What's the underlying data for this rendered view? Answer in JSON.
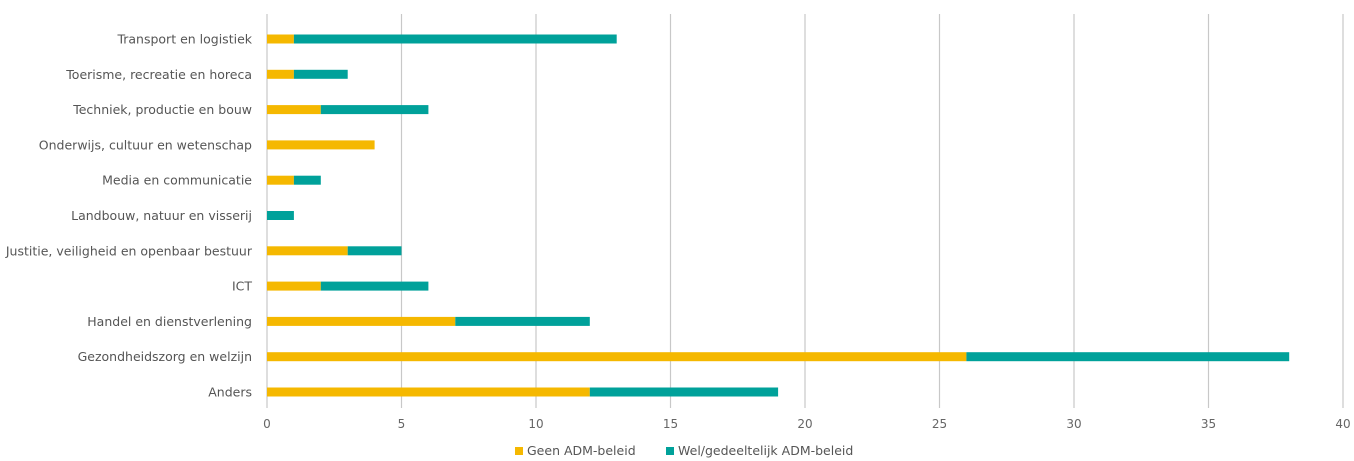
{
  "chart_data": {
    "type": "bar",
    "orientation": "horizontal",
    "stacked": true,
    "categories": [
      "Transport en logistiek",
      "Toerisme, recreatie en horeca",
      "Techniek, productie en bouw",
      "Onderwijs, cultuur en wetenschap",
      "Media en communicatie",
      "Landbouw, natuur en visserij",
      "Justitie, veiligheid en openbaar bestuur",
      "ICT",
      "Handel en dienstverlening",
      "Gezondheidszorg en welzijn",
      "Anders"
    ],
    "series": [
      {
        "name": "Geen ADM-beleid",
        "color": "#F5B800",
        "values": [
          1,
          1,
          2,
          4,
          1,
          0,
          3,
          2,
          7,
          26,
          12
        ]
      },
      {
        "name": "Wel/gedeeltelijk ADM-beleid",
        "color": "#00A19A",
        "values": [
          12,
          2,
          4,
          0,
          1,
          1,
          2,
          4,
          5,
          12,
          7
        ]
      }
    ],
    "xlim": [
      0,
      40
    ],
    "xticks": [
      "0",
      "5",
      "10",
      "15",
      "20",
      "25",
      "30",
      "35",
      "40"
    ],
    "grid": "vertical",
    "gridColor": "#c8c8c8",
    "legend": "bottom",
    "title": "",
    "xlabel": "",
    "ylabel": ""
  }
}
